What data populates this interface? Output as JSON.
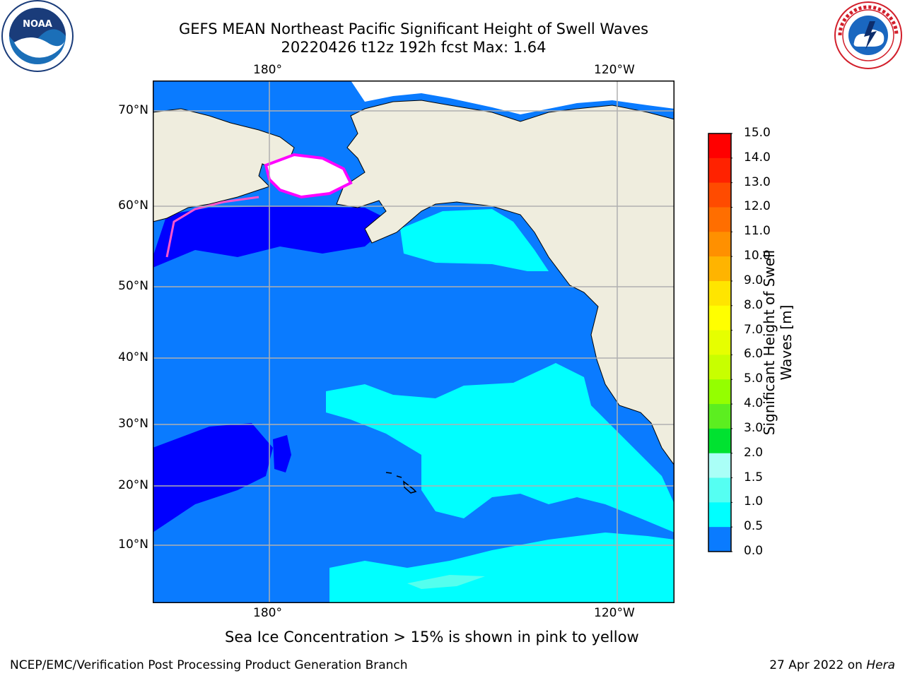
{
  "header": {
    "title_line1": "GEFS MEAN Northeast Pacific Significant Height of Swell Waves",
    "title_line2": "20220426 t12z 192h fcst   Max: 1.64"
  },
  "logos": {
    "left": {
      "text": "NOAA",
      "icon": "noaa-logo"
    },
    "right": {
      "icon": "nws-logo"
    }
  },
  "map": {
    "lon_top_labels": [
      "180°",
      "120°W"
    ],
    "lon_bottom_labels": [
      "180°",
      "120°W"
    ],
    "lat_labels": [
      "70°N",
      "60°N",
      "50°N",
      "40°N",
      "30°N",
      "20°N",
      "10°N"
    ],
    "colors": {
      "land": "#efedde",
      "ice_white": "#ffffff",
      "wave_0_05": "#0000ff",
      "wave_05_10": "#0a7bff",
      "wave_10_15": "#00ffff",
      "wave_15_20": "#54ffee",
      "grid": "#b0b0b0"
    }
  },
  "colorbar": {
    "title": "Significant Height of Swell Waves [m]",
    "tick_labels": [
      "15.0",
      "14.0",
      "13.0",
      "12.0",
      "11.0",
      "10.0",
      "9.0",
      "8.0",
      "7.0",
      "6.0",
      "5.0",
      "4.0",
      "3.0",
      "2.0",
      "1.5",
      "1.0",
      "0.5",
      "0.0"
    ],
    "colors": [
      "#ff0000",
      "#ff2200",
      "#ff4b00",
      "#ff6e00",
      "#ff9000",
      "#ffb400",
      "#ffe500",
      "#ffff00",
      "#e6ff00",
      "#c8ff00",
      "#94ff00",
      "#5cee20",
      "#00e230",
      "#55f375",
      "#aafff7",
      "#55fff2",
      "#00ffff",
      "#0a7bff",
      "#0000ff"
    ]
  },
  "caption": "Sea Ice Concentration > 15% is shown in pink to yellow",
  "footer": {
    "left": "NCEP/EMC/Verification Post Processing Product Generation Branch",
    "right_prefix": "27 Apr 2022 on ",
    "right_host": "Hera"
  }
}
